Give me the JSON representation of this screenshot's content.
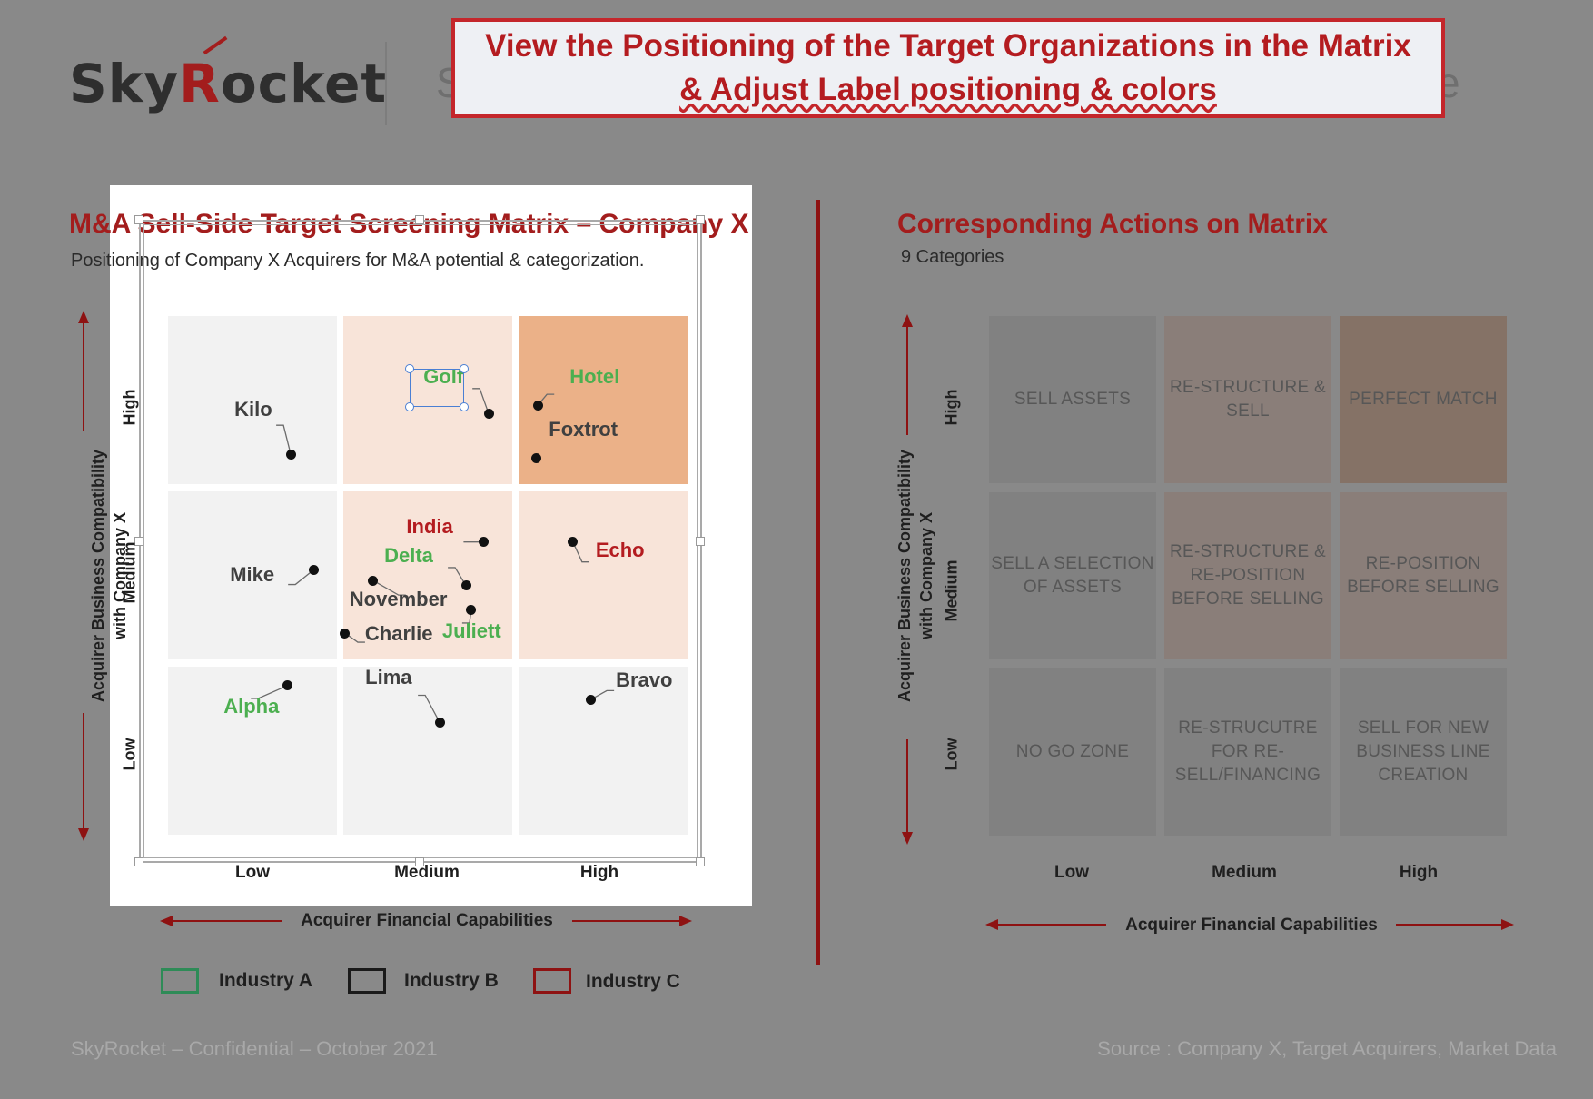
{
  "logo": {
    "part1": "Sky",
    "part2": "R",
    "part3": "ocket"
  },
  "ghost_title": {
    "left_char": "S",
    "right_char": "e"
  },
  "callout": {
    "line1": "View the Positioning of the Target Organizations in the Matrix",
    "line2": "& Adjust Label positioning & colors"
  },
  "left_chart": {
    "title": "M&A Sell-Side Target Screening Matrix – Company X",
    "subtitle": "Positioning of Company X Acquirers for M&A potential & categorization.",
    "selected_label": "Golf"
  },
  "right_chart": {
    "title": "Corresponding Actions on Matrix",
    "subtitle": "9 Categories",
    "xlabel": "Acquirer Financial Capabilities",
    "ylabel_line1": "Acquirer  Business Compatibility",
    "ylabel_line2": "with Company X",
    "x_ticks": [
      "Low",
      "Medium",
      "High"
    ],
    "y_ticks": [
      "High",
      "Medium",
      "Low"
    ],
    "cells": [
      [
        "SELL ASSETS",
        "RE-STRUCTURE & SELL",
        "PERFECT MATCH"
      ],
      [
        "SELL A SELECTION OF ASSETS",
        "RE-STRUCTURE & RE-POSITION BEFORE SELLING",
        "RE-POSITION BEFORE SELLING"
      ],
      [
        "NO GO ZONE",
        "RE-STRUCUTRE FOR RE-SELL/FINANCING",
        "SELL FOR NEW BUSINESS LINE CREATION"
      ]
    ]
  },
  "legend": [
    {
      "label": "Industry A",
      "color": "#2e8b57"
    },
    {
      "label": "Industry B",
      "color": "#1a1a1a"
    },
    {
      "label": "Industry C",
      "color": "#8e1212"
    }
  ],
  "footer": {
    "left": "SkyRocket – Confidential – October 2021",
    "right": "Source : Company X, Target Acquirers, Market Data"
  },
  "colors": {
    "accent_red": "#a31d1d",
    "industry_A": "#4caf50",
    "industry_B": "#404040",
    "industry_C": "#b41c20",
    "cell_light": "#f2f2f2",
    "cell_peach": "#f8e4d9",
    "cell_orange": "#ebb188"
  },
  "chart_data": {
    "type": "scatter",
    "title": "M&A Sell-Side Target Screening Matrix – Company X",
    "subtitle": "Positioning of Company X Acquirers for M&A potential & categorization.",
    "xlabel": "Acquirer Financial Capabilities",
    "ylabel": "Acquirer Business Compatibility with Company X",
    "x_ticks": [
      "Low",
      "Medium",
      "High"
    ],
    "y_ticks": [
      "Low",
      "Medium",
      "High"
    ],
    "xlim": [
      0,
      3
    ],
    "ylim": [
      0,
      3
    ],
    "grid": "3x3 matrix",
    "points": [
      {
        "name": "Kilo",
        "industry": "B",
        "x": 0.7,
        "y": 2.17
      },
      {
        "name": "Golf",
        "industry": "A",
        "x": 1.83,
        "y": 2.4
      },
      {
        "name": "Hotel",
        "industry": "A",
        "x": 2.11,
        "y": 2.45
      },
      {
        "name": "Foxtrot",
        "industry": "B",
        "x": 2.1,
        "y": 2.15
      },
      {
        "name": "Mike",
        "industry": "B",
        "x": 0.83,
        "y": 1.51
      },
      {
        "name": "India",
        "industry": "C",
        "x": 1.8,
        "y": 1.67
      },
      {
        "name": "Delta",
        "industry": "A",
        "x": 1.7,
        "y": 1.42
      },
      {
        "name": "Echo",
        "industry": "C",
        "x": 2.31,
        "y": 1.67
      },
      {
        "name": "November",
        "industry": "B",
        "x": 1.17,
        "y": 1.45
      },
      {
        "name": "Juliett",
        "industry": "A",
        "x": 1.73,
        "y": 1.28
      },
      {
        "name": "Charlie",
        "industry": "B",
        "x": 1.01,
        "y": 1.15
      },
      {
        "name": "Alpha",
        "industry": "A",
        "x": 0.68,
        "y": 0.85
      },
      {
        "name": "Lima",
        "industry": "B",
        "x": 1.55,
        "y": 0.64
      },
      {
        "name": "Bravo",
        "industry": "B",
        "x": 2.41,
        "y": 0.77
      }
    ]
  }
}
